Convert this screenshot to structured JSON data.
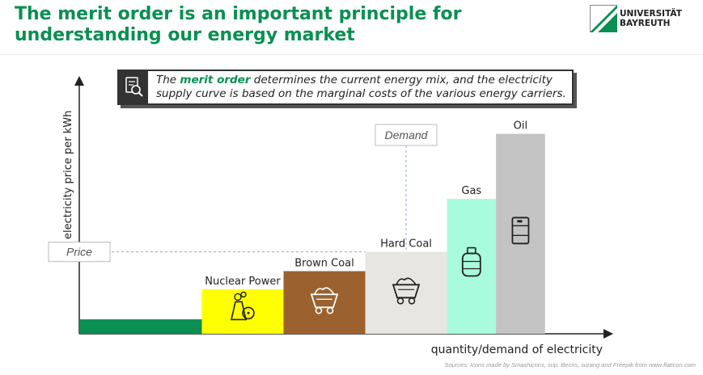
{
  "title_lines": [
    "The merit order is an important principle for",
    "understanding our energy market"
  ],
  "logo": {
    "line1": "UNIVERSITÄT",
    "line2": "BAYREUTH"
  },
  "callout": {
    "icon": "magnifier-document-icon",
    "pre": "The ",
    "highlight": "merit order",
    "post": " determines the current energy mix, and the electricity supply curve is based on the marginal costs of the various energy carriers."
  },
  "sources": "Sources: Icons made by Smashicons, srip, Becris, surang and Freepik from www.flaticon.com",
  "colors": {
    "brand_green": "#0a8f52",
    "renewables": "#0a8f52",
    "nuclear": "#ffff00",
    "brown_coal": "#9b6230",
    "hard_coal": "#e8e6e2",
    "gas": "#a8fbdc",
    "oil": "#c3c3c3"
  },
  "chart_data": {
    "type": "bar",
    "description_axis": "merit order supply curve, bars placed side by side with widths = capacity",
    "xlabel": "quantity/demand of electricity",
    "ylabel": "electricity price per kWh",
    "categories": [
      "",
      "Nuclear Power",
      "Brown Coal",
      "Hard Coal",
      "Gas",
      "Oil"
    ],
    "bars": [
      {
        "label": "",
        "capacity": 1.5,
        "price": 0.6,
        "color": "#0a8f52",
        "icon": ""
      },
      {
        "label": "Nuclear Power",
        "capacity": 1.0,
        "price": 1.85,
        "color": "#ffff00",
        "icon": "nuclear-plant-icon"
      },
      {
        "label": "Brown Coal",
        "capacity": 1.0,
        "price": 2.6,
        "color": "#9b6230",
        "icon": "coal-cart-icon"
      },
      {
        "label": "Hard Coal",
        "capacity": 1.0,
        "price": 3.4,
        "color": "#e8e6e2",
        "icon": "coal-cart-icon"
      },
      {
        "label": "Gas",
        "capacity": 0.6,
        "price": 5.6,
        "color": "#a8fbdc",
        "icon": "gas-bottle-icon"
      },
      {
        "label": "Oil",
        "capacity": 0.6,
        "price": 8.3,
        "color": "#c3c3c3",
        "icon": "oil-barrel-icon"
      }
    ],
    "xlim": [
      0,
      6.7
    ],
    "ylim": [
      0,
      10.5
    ],
    "demand": {
      "label": "Demand",
      "x": 4.0
    },
    "price": {
      "label": "Price",
      "y": 3.4
    }
  }
}
